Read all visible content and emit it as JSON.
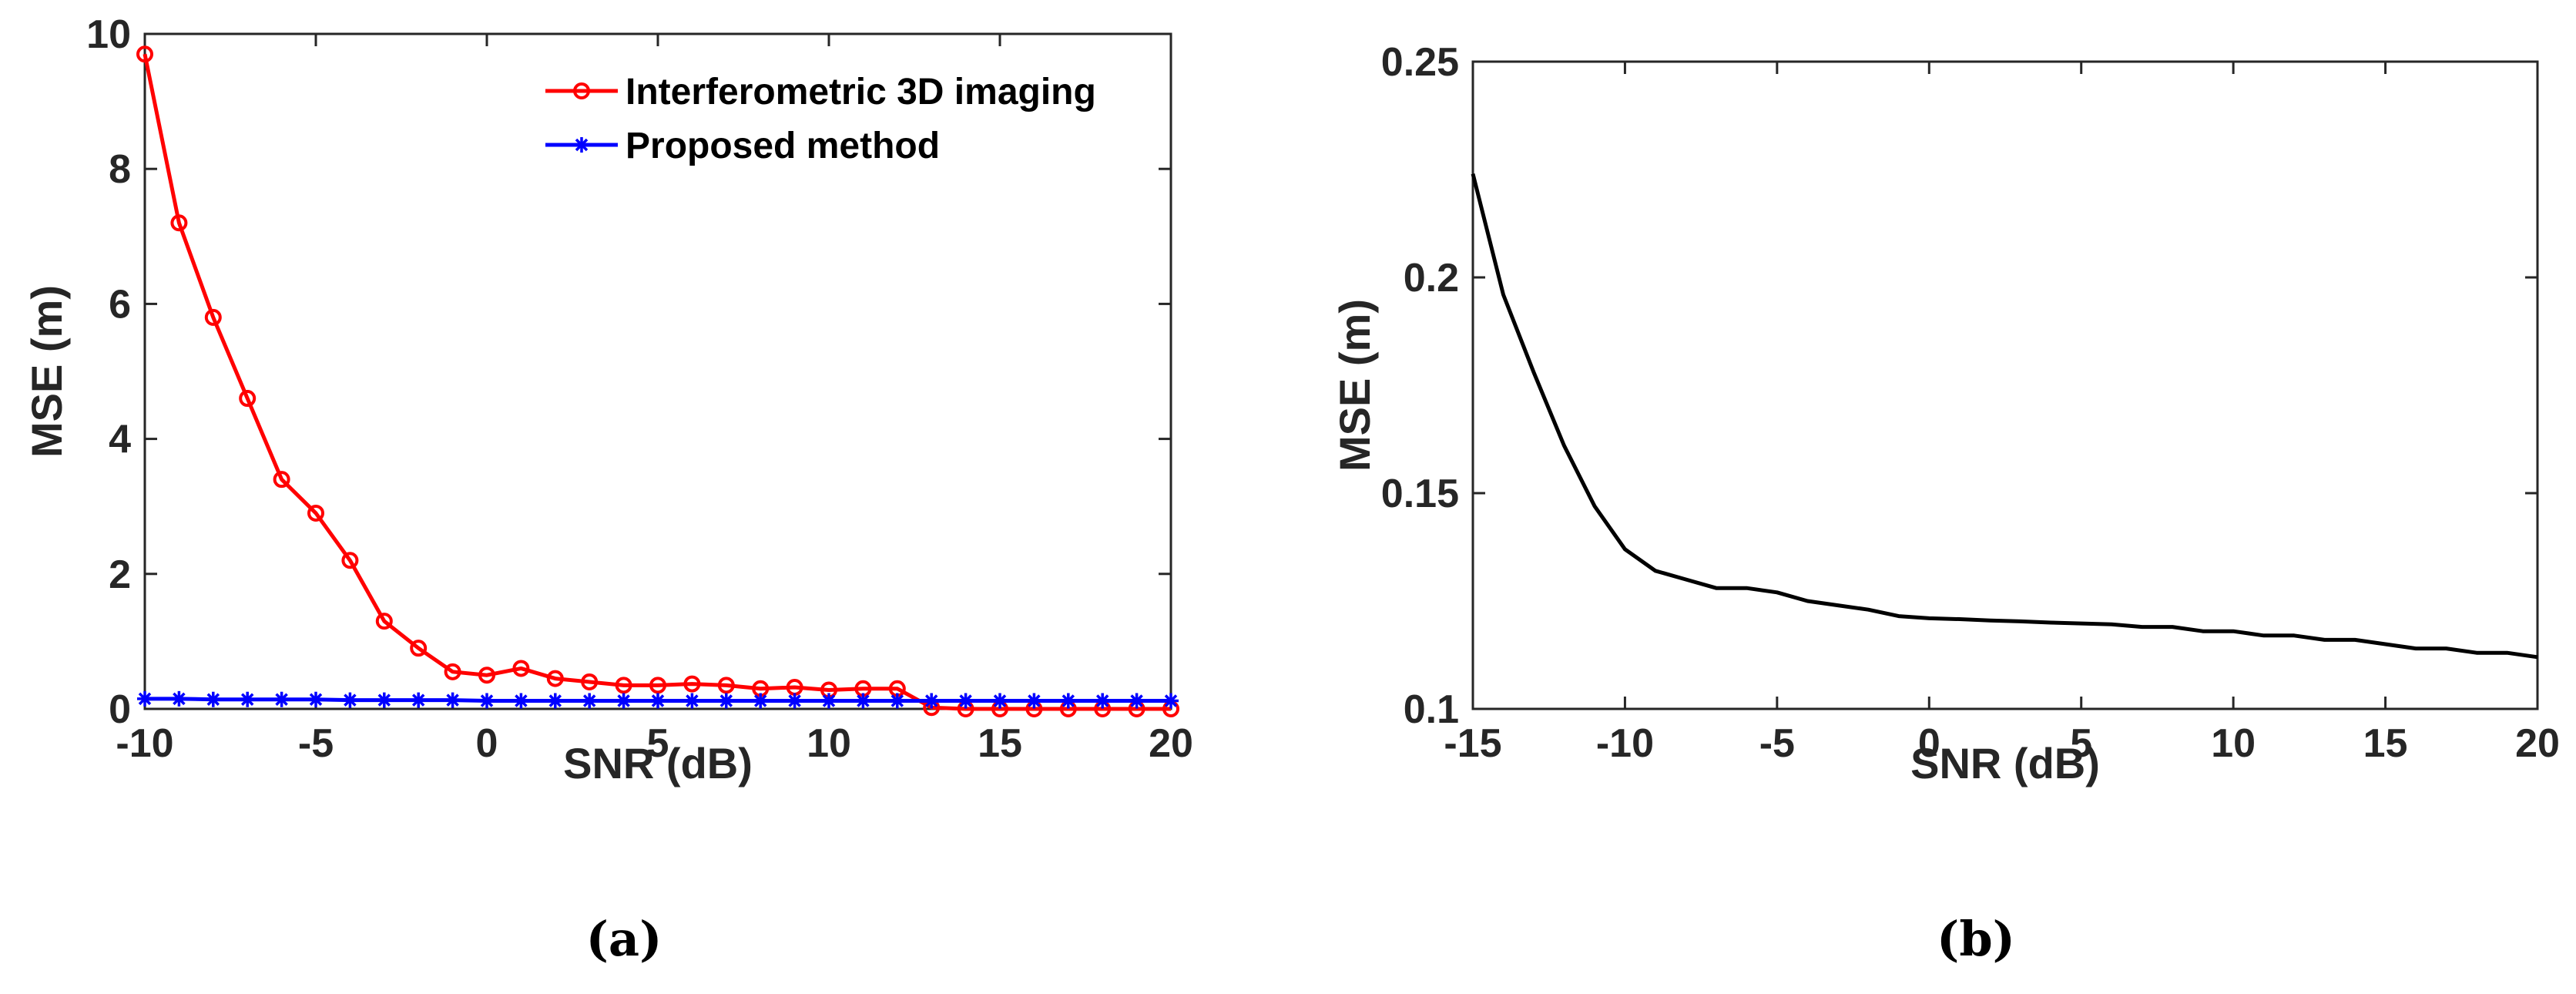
{
  "chart_data": [
    {
      "type": "line",
      "panel": "a",
      "caption": "(a)",
      "xlabel": "SNR (dB)",
      "ylabel": "MSE (m)",
      "xlim": [
        -10,
        20
      ],
      "ylim": [
        0,
        10
      ],
      "xticks": [
        -10,
        -5,
        0,
        5,
        10,
        15,
        20
      ],
      "yticks": [
        0,
        2,
        4,
        6,
        8,
        10
      ],
      "xtick_labels": [
        "-10",
        "-5",
        "0",
        "5",
        "10",
        "15",
        "20"
      ],
      "ytick_labels": [
        "0",
        "2",
        "4",
        "6",
        "8",
        "10"
      ],
      "legend_position": "top-right",
      "x": [
        -10,
        -9,
        -8,
        -7,
        -6,
        -5,
        -4,
        -3,
        -2,
        -1,
        0,
        1,
        2,
        3,
        4,
        5,
        6,
        7,
        8,
        9,
        10,
        11,
        12,
        13,
        14,
        15,
        16,
        17,
        18,
        19,
        20
      ],
      "series": [
        {
          "name": "Interferometric 3D imaging",
          "color": "#ff0000",
          "marker": "circle",
          "values": [
            9.7,
            7.2,
            5.8,
            4.6,
            3.4,
            2.9,
            2.2,
            1.3,
            0.9,
            0.55,
            0.5,
            0.6,
            0.45,
            0.4,
            0.35,
            0.35,
            0.37,
            0.35,
            0.3,
            0.32,
            0.28,
            0.3,
            0.3,
            0.02,
            0.0,
            0.0,
            0.0,
            0.0,
            0.0,
            0.0,
            0.0
          ]
        },
        {
          "name": "Proposed method",
          "color": "#0000ff",
          "marker": "asterisk",
          "values": [
            0.15,
            0.15,
            0.14,
            0.14,
            0.14,
            0.14,
            0.13,
            0.13,
            0.13,
            0.13,
            0.12,
            0.12,
            0.12,
            0.12,
            0.12,
            0.12,
            0.12,
            0.12,
            0.12,
            0.12,
            0.12,
            0.12,
            0.12,
            0.12,
            0.12,
            0.12,
            0.12,
            0.12,
            0.12,
            0.12,
            0.12
          ]
        }
      ]
    },
    {
      "type": "line",
      "panel": "b",
      "caption": "(b)",
      "xlabel": "SNR (dB)",
      "ylabel": "MSE (m)",
      "xlim": [
        -15,
        20
      ],
      "ylim": [
        0.1,
        0.25
      ],
      "xticks": [
        -15,
        -10,
        -5,
        0,
        5,
        10,
        15,
        20
      ],
      "yticks": [
        0.1,
        0.15,
        0.2,
        0.25
      ],
      "xtick_labels": [
        "-15",
        "-10",
        "-5",
        "0",
        "5",
        "10",
        "15",
        "20"
      ],
      "ytick_labels": [
        "0.1",
        "0.15",
        "0.2",
        "0.25"
      ],
      "x": [
        -15,
        -14,
        -13,
        -12,
        -11,
        -10,
        -9,
        -8,
        -7,
        -6,
        -5,
        -4,
        -3,
        -2,
        -1,
        0,
        1,
        2,
        3,
        4,
        5,
        6,
        7,
        8,
        9,
        10,
        11,
        12,
        13,
        14,
        15,
        16,
        17,
        18,
        19,
        20
      ],
      "series": [
        {
          "name": "MSE",
          "color": "#000000",
          "marker": "none",
          "values": [
            0.224,
            0.196,
            0.178,
            0.161,
            0.147,
            0.137,
            0.132,
            0.13,
            0.128,
            0.128,
            0.127,
            0.125,
            0.124,
            0.123,
            0.1215,
            0.121,
            0.1208,
            0.1205,
            0.1203,
            0.12,
            0.1198,
            0.1196,
            0.119,
            0.119,
            0.118,
            0.118,
            0.117,
            0.117,
            0.116,
            0.116,
            0.115,
            0.114,
            0.114,
            0.113,
            0.113,
            0.112
          ]
        }
      ]
    }
  ]
}
